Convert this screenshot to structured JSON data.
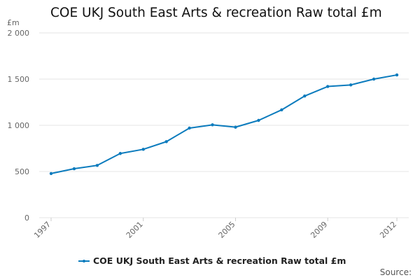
{
  "colors": {
    "series": "#0b7bbd",
    "grid": "#e6e6e6",
    "axis_text": "#666666"
  },
  "footer": {
    "source_label": "Source:"
  },
  "chart_data": {
    "type": "line",
    "title": "COE UKJ South East Arts & recreation Raw total £m",
    "ylabel": "£m",
    "xlabel": "",
    "ylim": [
      0,
      2000
    ],
    "yticks": [
      0,
      500,
      1000,
      1500,
      2000
    ],
    "ytick_labels": [
      "0",
      "500",
      "1 000",
      "1 500",
      "2 000"
    ],
    "xticks": [
      1997,
      2001,
      2005,
      2009,
      2012
    ],
    "grid": true,
    "legend": "bottom",
    "series": [
      {
        "name": "COE UKJ South East Arts & recreation Raw total £m",
        "x": [
          1997,
          1998,
          1999,
          2000,
          2001,
          2002,
          2003,
          2004,
          2005,
          2006,
          2007,
          2008,
          2009,
          2010,
          2011,
          2012
        ],
        "values": [
          478,
          530,
          566,
          695,
          740,
          823,
          970,
          1005,
          980,
          1053,
          1167,
          1317,
          1420,
          1437,
          1500,
          1545
        ]
      }
    ]
  }
}
